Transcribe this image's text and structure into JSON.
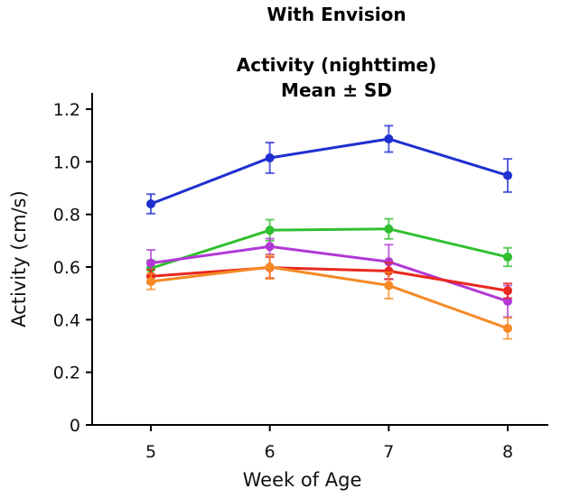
{
  "figure": {
    "top_label": "With Envision"
  },
  "chart_data": {
    "type": "line",
    "title": "Activity (nighttime)",
    "subtitle": "Mean ± SD",
    "xlabel": "Week of Age",
    "ylabel": "Activity (cm/s)",
    "x": [
      5,
      6,
      7,
      8
    ],
    "xlim": [
      4.5,
      8.3
    ],
    "ylim": [
      0,
      1.2
    ],
    "yticks": [
      0,
      0.2,
      0.4,
      0.6,
      0.8,
      1.0,
      1.2
    ],
    "ytick_labels": [
      "0",
      "0.2",
      "0.4",
      "0.6",
      "0.8",
      "1.0",
      "1.2"
    ],
    "xtick_labels": [
      "5",
      "6",
      "7",
      "8"
    ],
    "grid": false,
    "legend": "none",
    "series": [
      {
        "color": "#1f2fd0",
        "values": [
          0.84,
          1.015,
          1.087,
          0.948
        ],
        "sd": [
          0.037,
          0.058,
          0.05,
          0.063
        ]
      },
      {
        "color": "#2fbf2f",
        "values": [
          0.595,
          0.74,
          0.745,
          0.638
        ],
        "sd": [
          0.03,
          0.04,
          0.038,
          0.035
        ]
      },
      {
        "color": "#b238d6",
        "values": [
          0.615,
          0.678,
          0.62,
          0.47
        ],
        "sd": [
          0.05,
          0.03,
          0.065,
          0.06
        ]
      },
      {
        "color": "#e8281e",
        "values": [
          0.565,
          0.598,
          0.585,
          0.51
        ],
        "sd": [
          0.025,
          0.04,
          0.032,
          0.028
        ]
      },
      {
        "color": "#f58a25",
        "values": [
          0.545,
          0.6,
          0.53,
          0.367
        ],
        "sd": [
          0.03,
          0.045,
          0.05,
          0.04
        ]
      }
    ]
  }
}
